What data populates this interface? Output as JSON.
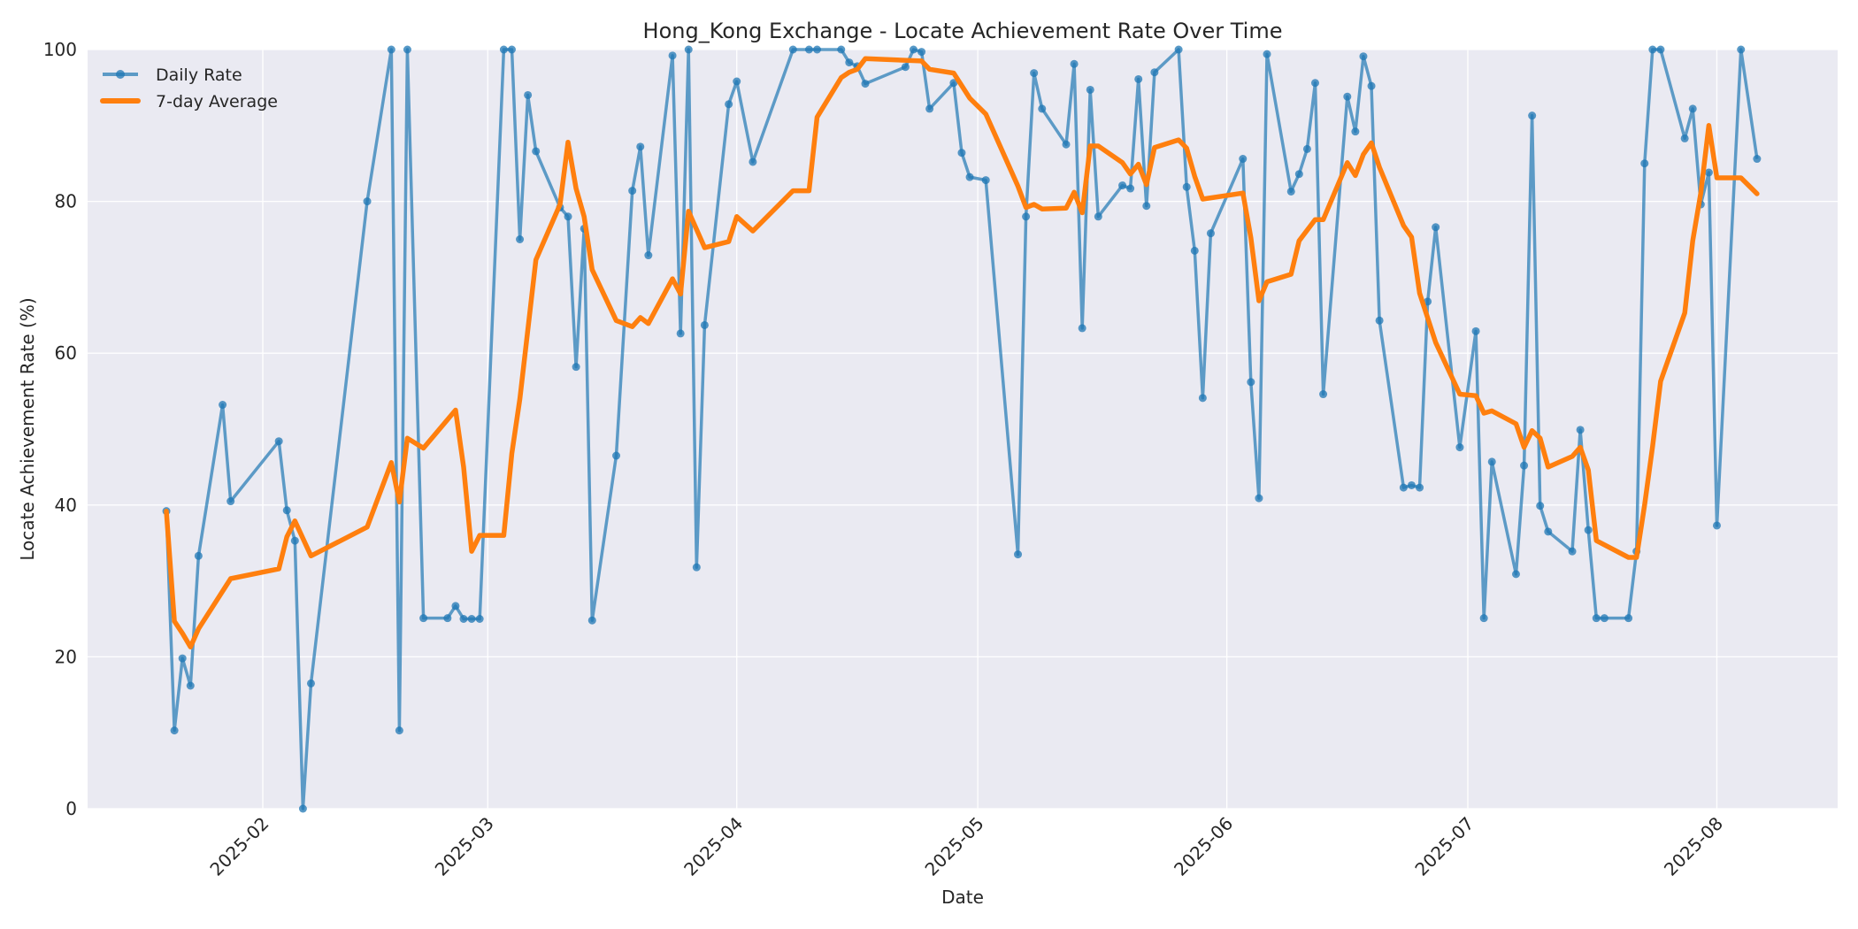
{
  "chart_data": {
    "type": "line",
    "title": "Hong_Kong Exchange - Locate Achievement Rate Over Time",
    "xlabel": "Date",
    "ylabel": "Locate Achievement Rate (%)",
    "ylim": [
      0,
      100
    ],
    "yticks": [
      0,
      20,
      40,
      60,
      80,
      100
    ],
    "xticks": [
      "2025-02",
      "2025-03",
      "2025-04",
      "2025-05",
      "2025-06",
      "2025-07",
      "2025-08"
    ],
    "xlim": [
      "2025-01-11",
      "2025-08-09"
    ],
    "grid": true,
    "legend_position": "upper left",
    "series": [
      {
        "name": "Daily Rate",
        "color": "#1f77b4",
        "marker": "circle",
        "points": [
          [
            "2025-01-20",
            39.2
          ],
          [
            "2025-01-21",
            10.3
          ],
          [
            "2025-01-22",
            19.8
          ],
          [
            "2025-01-23",
            16.2
          ],
          [
            "2025-01-24",
            33.3
          ],
          [
            "2025-01-27",
            53.2
          ],
          [
            "2025-01-28",
            40.5
          ],
          [
            "2025-02-03",
            48.4
          ],
          [
            "2025-02-04",
            39.3
          ],
          [
            "2025-02-05",
            35.3
          ],
          [
            "2025-02-06",
            0.0
          ],
          [
            "2025-02-07",
            16.5
          ],
          [
            "2025-02-14",
            80.0
          ],
          [
            "2025-02-17",
            100.0
          ],
          [
            "2025-02-18",
            10.3
          ],
          [
            "2025-02-19",
            100.0
          ],
          [
            "2025-02-21",
            25.1
          ],
          [
            "2025-02-24",
            25.1
          ],
          [
            "2025-02-25",
            26.7
          ],
          [
            "2025-02-26",
            25.0
          ],
          [
            "2025-02-27",
            25.0
          ],
          [
            "2025-02-28",
            25.0
          ],
          [
            "2025-03-03",
            100.0
          ],
          [
            "2025-03-04",
            100.0
          ],
          [
            "2025-03-05",
            75.0
          ],
          [
            "2025-03-06",
            94.0
          ],
          [
            "2025-03-07",
            86.6
          ],
          [
            "2025-03-10",
            79.2
          ],
          [
            "2025-03-11",
            78.0
          ],
          [
            "2025-03-12",
            58.2
          ],
          [
            "2025-03-13",
            76.4
          ],
          [
            "2025-03-14",
            24.8
          ],
          [
            "2025-03-17",
            46.5
          ],
          [
            "2025-03-19",
            81.4
          ],
          [
            "2025-03-20",
            87.2
          ],
          [
            "2025-03-21",
            72.9
          ],
          [
            "2025-03-24",
            99.2
          ],
          [
            "2025-03-25",
            62.6
          ],
          [
            "2025-03-26",
            100.0
          ],
          [
            "2025-03-27",
            31.8
          ],
          [
            "2025-03-28",
            63.7
          ],
          [
            "2025-03-31",
            92.8
          ],
          [
            "2025-04-01",
            95.8
          ],
          [
            "2025-04-03",
            85.2
          ],
          [
            "2025-04-08",
            100.0
          ],
          [
            "2025-04-10",
            100.0
          ],
          [
            "2025-04-11",
            100.0
          ],
          [
            "2025-04-14",
            100.0
          ],
          [
            "2025-04-15",
            98.3
          ],
          [
            "2025-04-16",
            97.8
          ],
          [
            "2025-04-17",
            95.5
          ],
          [
            "2025-04-22",
            97.7
          ],
          [
            "2025-04-23",
            100.0
          ],
          [
            "2025-04-24",
            99.7
          ],
          [
            "2025-04-25",
            92.2
          ],
          [
            "2025-04-28",
            95.6
          ],
          [
            "2025-04-29",
            86.4
          ],
          [
            "2025-04-30",
            83.2
          ],
          [
            "2025-05-02",
            82.8
          ],
          [
            "2025-05-06",
            33.5
          ],
          [
            "2025-05-07",
            78.0
          ],
          [
            "2025-05-08",
            96.9
          ],
          [
            "2025-05-09",
            92.2
          ],
          [
            "2025-05-12",
            87.5
          ],
          [
            "2025-05-13",
            98.1
          ],
          [
            "2025-05-14",
            63.3
          ],
          [
            "2025-05-15",
            94.7
          ],
          [
            "2025-05-16",
            78.0
          ],
          [
            "2025-05-19",
            82.1
          ],
          [
            "2025-05-20",
            81.7
          ],
          [
            "2025-05-21",
            96.1
          ],
          [
            "2025-05-22",
            79.4
          ],
          [
            "2025-05-23",
            97.0
          ],
          [
            "2025-05-26",
            100.0
          ],
          [
            "2025-05-27",
            81.9
          ],
          [
            "2025-05-28",
            73.5
          ],
          [
            "2025-05-29",
            54.1
          ],
          [
            "2025-05-30",
            75.8
          ],
          [
            "2025-06-03",
            85.6
          ],
          [
            "2025-06-04",
            56.2
          ],
          [
            "2025-06-05",
            40.9
          ],
          [
            "2025-06-06",
            99.4
          ],
          [
            "2025-06-09",
            81.3
          ],
          [
            "2025-06-10",
            83.6
          ],
          [
            "2025-06-11",
            86.9
          ],
          [
            "2025-06-12",
            95.6
          ],
          [
            "2025-06-13",
            54.6
          ],
          [
            "2025-06-16",
            93.8
          ],
          [
            "2025-06-17",
            89.2
          ],
          [
            "2025-06-18",
            99.1
          ],
          [
            "2025-06-19",
            95.2
          ],
          [
            "2025-06-20",
            64.3
          ],
          [
            "2025-06-23",
            42.3
          ],
          [
            "2025-06-24",
            42.6
          ],
          [
            "2025-06-25",
            42.3
          ],
          [
            "2025-06-26",
            66.8
          ],
          [
            "2025-06-27",
            76.6
          ],
          [
            "2025-06-30",
            47.6
          ],
          [
            "2025-07-02",
            62.9
          ],
          [
            "2025-07-03",
            25.1
          ],
          [
            "2025-07-04",
            45.7
          ],
          [
            "2025-07-07",
            30.9
          ],
          [
            "2025-07-08",
            45.2
          ],
          [
            "2025-07-09",
            91.3
          ],
          [
            "2025-07-10",
            39.9
          ],
          [
            "2025-07-11",
            36.5
          ],
          [
            "2025-07-14",
            33.9
          ],
          [
            "2025-07-15",
            49.9
          ],
          [
            "2025-07-16",
            36.7
          ],
          [
            "2025-07-17",
            25.1
          ],
          [
            "2025-07-18",
            25.1
          ],
          [
            "2025-07-21",
            25.1
          ],
          [
            "2025-07-22",
            33.9
          ],
          [
            "2025-07-23",
            85.0
          ],
          [
            "2025-07-24",
            100.0
          ],
          [
            "2025-07-25",
            100.0
          ],
          [
            "2025-07-28",
            88.3
          ],
          [
            "2025-07-29",
            92.2
          ],
          [
            "2025-07-30",
            79.6
          ],
          [
            "2025-07-31",
            83.8
          ],
          [
            "2025-08-01",
            37.3
          ],
          [
            "2025-08-04",
            100.0
          ],
          [
            "2025-08-06",
            85.6
          ]
        ]
      },
      {
        "name": "7-day Average",
        "color": "#ff7f0e",
        "marker": "none",
        "points": [
          [
            "2025-01-20",
            39.2
          ],
          [
            "2025-01-21",
            24.7
          ],
          [
            "2025-01-22",
            23.1
          ],
          [
            "2025-01-23",
            21.3
          ],
          [
            "2025-01-24",
            23.7
          ],
          [
            "2025-01-28",
            30.3
          ],
          [
            "2025-02-03",
            31.6
          ],
          [
            "2025-02-04",
            35.8
          ],
          [
            "2025-02-05",
            37.9
          ],
          [
            "2025-02-07",
            33.3
          ],
          [
            "2025-02-14",
            37.1
          ],
          [
            "2025-02-17",
            45.6
          ],
          [
            "2025-02-18",
            40.4
          ],
          [
            "2025-02-19",
            48.8
          ],
          [
            "2025-02-21",
            47.5
          ],
          [
            "2025-02-25",
            52.5
          ],
          [
            "2025-02-26",
            45.0
          ],
          [
            "2025-02-27",
            33.9
          ],
          [
            "2025-02-28",
            36.0
          ],
          [
            "2025-03-03",
            36.0
          ],
          [
            "2025-03-04",
            46.8
          ],
          [
            "2025-03-05",
            54.0
          ],
          [
            "2025-03-07",
            72.3
          ],
          [
            "2025-03-10",
            79.6
          ],
          [
            "2025-03-11",
            87.8
          ],
          [
            "2025-03-12",
            81.7
          ],
          [
            "2025-03-13",
            78.0
          ],
          [
            "2025-03-14",
            71.0
          ],
          [
            "2025-03-17",
            64.3
          ],
          [
            "2025-03-19",
            63.5
          ],
          [
            "2025-03-20",
            64.7
          ],
          [
            "2025-03-21",
            63.9
          ],
          [
            "2025-03-24",
            69.8
          ],
          [
            "2025-03-25",
            67.8
          ],
          [
            "2025-03-26",
            78.7
          ],
          [
            "2025-03-28",
            73.9
          ],
          [
            "2025-03-31",
            74.7
          ],
          [
            "2025-04-01",
            78.0
          ],
          [
            "2025-04-03",
            76.1
          ],
          [
            "2025-04-08",
            81.4
          ],
          [
            "2025-04-10",
            81.4
          ],
          [
            "2025-04-11",
            91.1
          ],
          [
            "2025-04-14",
            96.3
          ],
          [
            "2025-04-15",
            97.0
          ],
          [
            "2025-04-16",
            97.4
          ],
          [
            "2025-04-17",
            98.8
          ],
          [
            "2025-04-24",
            98.5
          ],
          [
            "2025-04-25",
            97.4
          ],
          [
            "2025-04-28",
            96.9
          ],
          [
            "2025-04-30",
            93.6
          ],
          [
            "2025-05-02",
            91.5
          ],
          [
            "2025-05-06",
            82.0
          ],
          [
            "2025-05-07",
            79.2
          ],
          [
            "2025-05-08",
            79.6
          ],
          [
            "2025-05-09",
            79.0
          ],
          [
            "2025-05-12",
            79.1
          ],
          [
            "2025-05-13",
            81.2
          ],
          [
            "2025-05-14",
            78.5
          ],
          [
            "2025-05-15",
            87.3
          ],
          [
            "2025-05-16",
            87.3
          ],
          [
            "2025-05-19",
            85.1
          ],
          [
            "2025-05-20",
            83.6
          ],
          [
            "2025-05-21",
            84.9
          ],
          [
            "2025-05-22",
            82.2
          ],
          [
            "2025-05-23",
            87.1
          ],
          [
            "2025-05-26",
            88.1
          ],
          [
            "2025-05-27",
            87.0
          ],
          [
            "2025-05-28",
            83.3
          ],
          [
            "2025-05-29",
            80.3
          ],
          [
            "2025-06-03",
            81.1
          ],
          [
            "2025-06-04",
            75.2
          ],
          [
            "2025-06-05",
            66.9
          ],
          [
            "2025-06-06",
            69.4
          ],
          [
            "2025-06-09",
            70.4
          ],
          [
            "2025-06-10",
            74.8
          ],
          [
            "2025-06-12",
            77.6
          ],
          [
            "2025-06-13",
            77.6
          ],
          [
            "2025-06-16",
            85.1
          ],
          [
            "2025-06-17",
            83.4
          ],
          [
            "2025-06-18",
            86.2
          ],
          [
            "2025-06-19",
            87.7
          ],
          [
            "2025-06-20",
            84.5
          ],
          [
            "2025-06-23",
            76.8
          ],
          [
            "2025-06-24",
            75.3
          ],
          [
            "2025-06-25",
            67.9
          ],
          [
            "2025-06-27",
            61.4
          ],
          [
            "2025-06-30",
            54.6
          ],
          [
            "2025-07-02",
            54.4
          ],
          [
            "2025-07-03",
            52.1
          ],
          [
            "2025-07-04",
            52.4
          ],
          [
            "2025-07-07",
            50.7
          ],
          [
            "2025-07-08",
            47.6
          ],
          [
            "2025-07-09",
            49.8
          ],
          [
            "2025-07-10",
            48.8
          ],
          [
            "2025-07-11",
            45.0
          ],
          [
            "2025-07-14",
            46.4
          ],
          [
            "2025-07-15",
            47.6
          ],
          [
            "2025-07-16",
            44.6
          ],
          [
            "2025-07-17",
            35.3
          ],
          [
            "2025-07-21",
            33.1
          ],
          [
            "2025-07-22",
            33.1
          ],
          [
            "2025-07-23",
            40.0
          ],
          [
            "2025-07-24",
            47.7
          ],
          [
            "2025-07-25",
            56.3
          ],
          [
            "2025-07-28",
            65.3
          ],
          [
            "2025-07-29",
            74.8
          ],
          [
            "2025-07-30",
            81.1
          ],
          [
            "2025-07-31",
            90.0
          ],
          [
            "2025-08-01",
            83.1
          ],
          [
            "2025-08-04",
            83.1
          ],
          [
            "2025-08-06",
            81.0
          ]
        ]
      }
    ]
  }
}
